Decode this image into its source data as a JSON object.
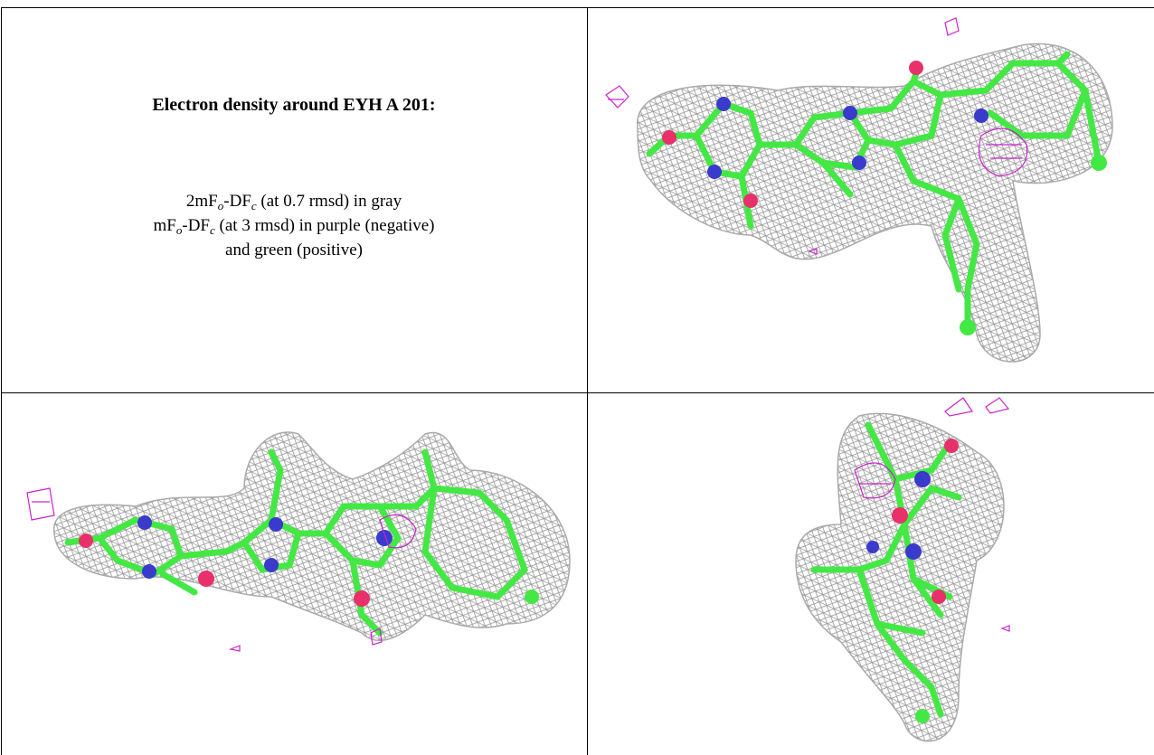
{
  "title": "Electron density around EYH A 201:",
  "caption": {
    "line1": [
      "2mF",
      "o",
      "-DF",
      "c",
      " (at 0.7 rmsd) in gray"
    ],
    "line2": [
      "mF",
      "o",
      "-DF",
      "c",
      " (at 3 rmsd) in purple (negative)"
    ],
    "line3": "and green (positive)"
  }
}
